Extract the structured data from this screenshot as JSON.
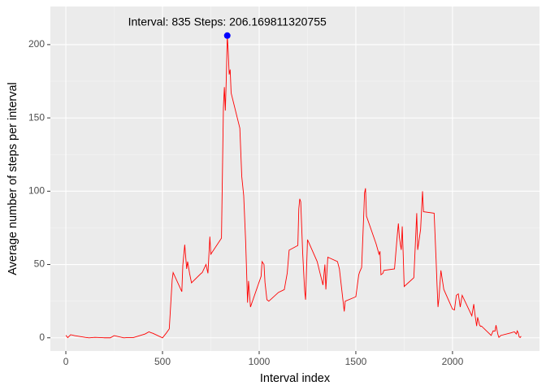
{
  "chart_data": {
    "type": "line",
    "x_label": "Interval index",
    "y_label": "Average number of steps per interval",
    "x": [
      0,
      10,
      25,
      45,
      100,
      120,
      150,
      200,
      230,
      250,
      300,
      320,
      350,
      410,
      430,
      440,
      450,
      500,
      520,
      535,
      550,
      555,
      600,
      605,
      615,
      625,
      630,
      640,
      650,
      700,
      705,
      725,
      735,
      745,
      750,
      805,
      815,
      820,
      825,
      830,
      835,
      840,
      845,
      850,
      855,
      900,
      910,
      920,
      930,
      935,
      940,
      945,
      955,
      1010,
      1015,
      1025,
      1030,
      1040,
      1050,
      1100,
      1130,
      1145,
      1155,
      1200,
      1205,
      1210,
      1215,
      1225,
      1235,
      1240,
      1250,
      1300,
      1330,
      1340,
      1345,
      1355,
      1405,
      1415,
      1440,
      1445,
      1500,
      1515,
      1520,
      1530,
      1540,
      1545,
      1550,
      1555,
      1605,
      1620,
      1625,
      1630,
      1640,
      1645,
      1700,
      1715,
      1720,
      1725,
      1730,
      1735,
      1740,
      1745,
      1750,
      1800,
      1815,
      1820,
      1835,
      1845,
      1850,
      1905,
      1915,
      1920,
      1925,
      1930,
      1940,
      1955,
      2000,
      2010,
      2020,
      2030,
      2040,
      2050,
      2100,
      2110,
      2115,
      2125,
      2130,
      2140,
      2145,
      2150,
      2200,
      2210,
      2220,
      2225,
      2235,
      2240,
      2250,
      2300,
      2320,
      2330,
      2335,
      2340,
      2345,
      2350,
      2355
    ],
    "values": [
      1.7,
      0.1,
      2.1,
      1.5,
      0.3,
      0,
      0.3,
      0,
      0,
      1.5,
      0,
      0.2,
      0.2,
      2.6,
      4.1,
      3.5,
      3.1,
      0,
      3.3,
      6.1,
      39.5,
      44.5,
      31.5,
      49.3,
      63.5,
      47,
      52,
      44,
      37.5,
      44,
      44.4,
      50,
      44,
      69,
      57,
      68,
      157,
      171,
      155,
      177,
      206.169811320755,
      195,
      179.6,
      183,
      167,
      143,
      110,
      97,
      66,
      45,
      24,
      38.8,
      21,
      42,
      52,
      50,
      38,
      26,
      25,
      31,
      32.9,
      44,
      59.8,
      63,
      88,
      94.8,
      92.8,
      58,
      32.5,
      26,
      67,
      52,
      36,
      50,
      33,
      55,
      52,
      47,
      18,
      25,
      28,
      43,
      45,
      48,
      81,
      98.7,
      102,
      83,
      64,
      57,
      59,
      43,
      44,
      46,
      47,
      71,
      78,
      69,
      64,
      60,
      76,
      57,
      35,
      41,
      85,
      60,
      74,
      100,
      86,
      85,
      53.5,
      36,
      21,
      27,
      46,
      33,
      19.6,
      19,
      29,
      30,
      21,
      29,
      15,
      23,
      17,
      8,
      14,
      8.7,
      7.8,
      8,
      1.6,
      4.7,
      4.6,
      8.6,
      2.2,
      0.3,
      1.6,
      3.3,
      4.1,
      2.6,
      4.7,
      3.3,
      0.6,
      0.2,
      1.1
    ],
    "color": "#ff0000",
    "highlight": {
      "x": 835,
      "y": 206.169811320755,
      "label": "Interval: 835 Steps: 206.169811320755",
      "color": "#0000ff"
    },
    "xlim": [
      -80,
      2450
    ],
    "xticks": [
      0,
      500,
      1000,
      1500,
      2000
    ],
    "ylim": [
      -9,
      226
    ],
    "yticks": [
      0,
      50,
      100,
      150,
      200
    ],
    "grid": true
  }
}
